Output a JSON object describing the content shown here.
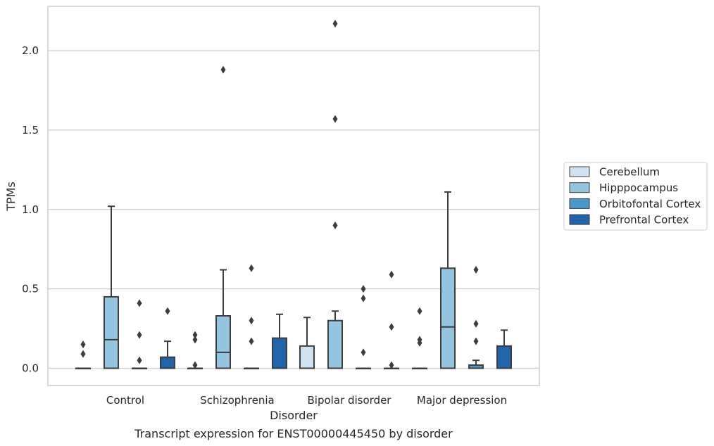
{
  "chart_data": {
    "type": "box",
    "xlabel": "Disorder",
    "ylabel": "TPMs",
    "caption": "Transcript expression for ENST00000445450 by disorder",
    "ylim": [
      -0.1,
      2.29
    ],
    "yticks": [
      "0.0",
      "0.5",
      "1.0",
      "1.5",
      "2.0"
    ],
    "ytick_values": [
      0.0,
      0.5,
      1.0,
      1.5,
      2.0
    ],
    "grid": "horizontal",
    "legend_position": "right",
    "categories": [
      "Control",
      "Schizophrenia",
      "Bipolar disorder",
      "Major depression"
    ],
    "series": [
      {
        "name": "Cerebellum",
        "color": "#d0e1f2",
        "boxes": [
          {
            "q1": 0,
            "median": 0,
            "q3": 0,
            "whislo": 0,
            "whishi": 0,
            "fliers": [
              0.15,
              0.09
            ]
          },
          {
            "q1": 0,
            "median": 0,
            "q3": 0,
            "whislo": 0,
            "whishi": 0,
            "fliers": [
              0.21,
              0.18,
              0.02
            ]
          },
          {
            "q1": 0,
            "median": 0,
            "q3": 0.14,
            "whislo": 0,
            "whishi": 0.32,
            "fliers": []
          },
          {
            "q1": 0,
            "median": 0,
            "q3": 0,
            "whislo": 0,
            "whishi": 0,
            "fliers": [
              0.36,
              0.18,
              0.16
            ]
          }
        ]
      },
      {
        "name": "Hipppocampus",
        "color": "#94c4df",
        "boxes": [
          {
            "q1": 0,
            "median": 0.18,
            "q3": 0.45,
            "whislo": 0,
            "whishi": 1.02,
            "fliers": []
          },
          {
            "q1": 0,
            "median": 0.1,
            "q3": 0.33,
            "whislo": 0,
            "whishi": 0.62,
            "fliers": [
              1.88
            ]
          },
          {
            "q1": 0,
            "median": 0,
            "q3": 0.3,
            "whislo": 0,
            "whishi": 0.36,
            "fliers": [
              2.17,
              1.57,
              0.9
            ]
          },
          {
            "q1": 0,
            "median": 0.26,
            "q3": 0.63,
            "whislo": 0,
            "whishi": 1.11,
            "fliers": []
          }
        ]
      },
      {
        "name": "Orbitofontal Cortex",
        "color": "#4a98c9",
        "boxes": [
          {
            "q1": 0,
            "median": 0,
            "q3": 0,
            "whislo": 0,
            "whishi": 0,
            "fliers": [
              0.41,
              0.21,
              0.05
            ]
          },
          {
            "q1": 0,
            "median": 0,
            "q3": 0,
            "whislo": 0,
            "whishi": 0,
            "fliers": [
              0.63,
              0.3,
              0.17
            ]
          },
          {
            "q1": 0,
            "median": 0,
            "q3": 0,
            "whislo": 0,
            "whishi": 0,
            "fliers": [
              0.5,
              0.44,
              0.1
            ]
          },
          {
            "q1": 0,
            "median": 0,
            "q3": 0.02,
            "whislo": 0,
            "whishi": 0.05,
            "fliers": [
              0.62,
              0.28,
              0.17
            ]
          }
        ]
      },
      {
        "name": "Prefrontal Cortex",
        "color": "#2164ab",
        "boxes": [
          {
            "q1": 0,
            "median": 0,
            "q3": 0.07,
            "whislo": 0,
            "whishi": 0.17,
            "fliers": [
              0.36
            ]
          },
          {
            "q1": 0,
            "median": 0,
            "q3": 0.19,
            "whislo": 0,
            "whishi": 0.34,
            "fliers": []
          },
          {
            "q1": 0,
            "median": 0,
            "q3": 0,
            "whislo": 0,
            "whishi": 0,
            "fliers": [
              0.59,
              0.26,
              0.02
            ]
          },
          {
            "q1": 0,
            "median": 0,
            "q3": 0.14,
            "whislo": 0,
            "whishi": 0.24,
            "fliers": []
          }
        ]
      }
    ]
  }
}
